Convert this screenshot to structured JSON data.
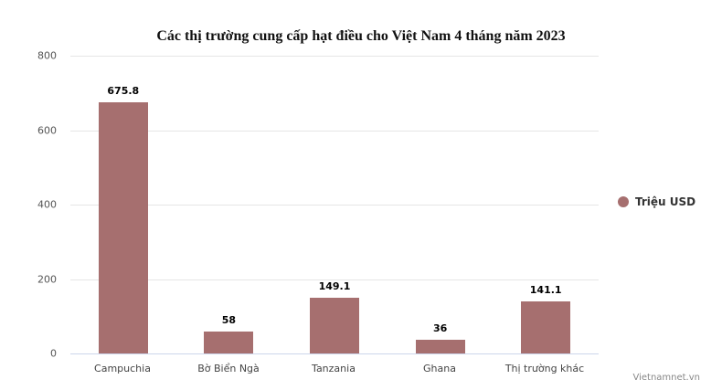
{
  "chart_data": {
    "type": "bar",
    "title": "Các thị trường cung cấp hạt điều cho Việt Nam 4 tháng năm 2023",
    "categories": [
      "Campuchia",
      "Bờ Biển Ngà",
      "Tanzania",
      "Ghana",
      "Thị trường khác"
    ],
    "series": [
      {
        "name": "Triệu USD",
        "values": [
          675.8,
          58,
          149.1,
          36,
          141.1
        ],
        "color": "#a66f6f"
      }
    ],
    "data_labels": [
      "675.8",
      "58",
      "149.1",
      "36",
      "141.1"
    ],
    "xlabel": "",
    "ylabel": "",
    "ylim": [
      0,
      800
    ],
    "yticks": [
      0,
      200,
      400,
      600,
      800
    ],
    "grid": true,
    "legend_position": "right"
  },
  "yticks": [
    "800",
    "600",
    "400",
    "200",
    "0"
  ],
  "legend": {
    "label": "Triệu USD"
  },
  "credit": "Vietnamnet.vn"
}
